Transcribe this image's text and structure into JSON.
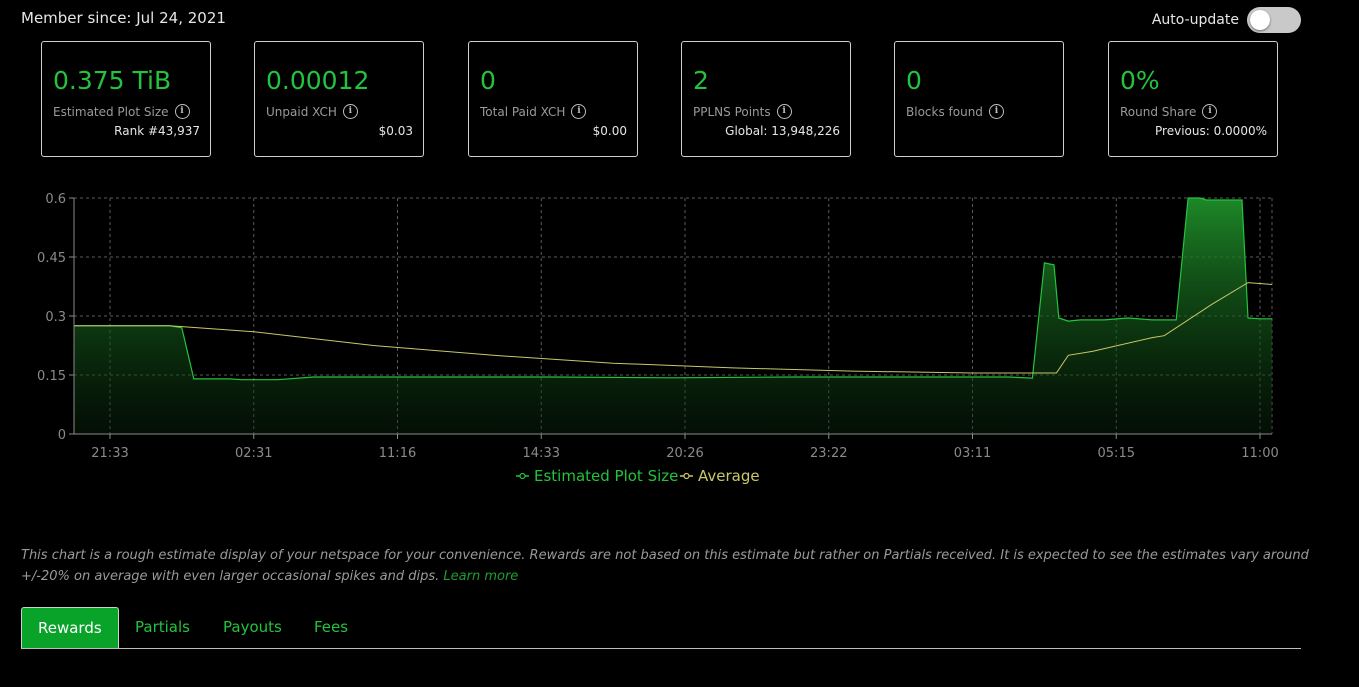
{
  "header": {
    "member_since": "Member since: Jul 24, 2021",
    "auto_update_label": "Auto-update",
    "auto_update_on": false
  },
  "cards": [
    {
      "value": "0.375 TiB",
      "label": "Estimated Plot Size",
      "sub": "Rank #43,937"
    },
    {
      "value": "0.00012",
      "label": "Unpaid XCH",
      "sub": "$0.03"
    },
    {
      "value": "0",
      "label": "Total Paid XCH",
      "sub": "$0.00"
    },
    {
      "value": "2",
      "label": "PPLNS Points",
      "sub": "Global: 13,948,226"
    },
    {
      "value": "0",
      "label": "Blocks found",
      "sub": ""
    },
    {
      "value": "0%",
      "label": "Round Share",
      "sub": "Previous: 0.0000%"
    }
  ],
  "chart_data": {
    "type": "area",
    "y_ticks": [
      "0.6",
      "0.45",
      "0.3",
      "0.15",
      "0"
    ],
    "ylim": [
      0,
      0.6
    ],
    "x_ticks": [
      "21:33",
      "02:31",
      "11:16",
      "14:33",
      "20:26",
      "23:22",
      "03:11",
      "05:15",
      "11:00"
    ],
    "grid": true,
    "legend_position": "bottom",
    "colors": {
      "plot": "#24c33d",
      "average": "#c9c86a"
    },
    "series": [
      {
        "name": "Estimated Plot Size",
        "x": [
          0,
          0.08,
          0.09,
          0.1,
          0.13,
          0.14,
          0.17,
          0.2,
          0.3,
          0.4,
          0.5,
          0.6,
          0.7,
          0.78,
          0.8,
          0.81,
          0.818,
          0.822,
          0.83,
          0.84,
          0.86,
          0.88,
          0.9,
          0.91,
          0.92,
          0.93,
          0.94,
          0.945,
          0.975,
          0.98,
          0.99,
          1.0
        ],
        "values": [
          0.275,
          0.275,
          0.27,
          0.14,
          0.14,
          0.138,
          0.138,
          0.145,
          0.145,
          0.145,
          0.143,
          0.145,
          0.145,
          0.145,
          0.142,
          0.435,
          0.43,
          0.295,
          0.287,
          0.29,
          0.29,
          0.295,
          0.29,
          0.29,
          0.29,
          0.6,
          0.6,
          0.595,
          0.595,
          0.295,
          0.293,
          0.293
        ]
      },
      {
        "name": "Average",
        "x": [
          0,
          0.08,
          0.15,
          0.25,
          0.35,
          0.45,
          0.55,
          0.65,
          0.75,
          0.82,
          0.83,
          0.85,
          0.9,
          0.91,
          0.95,
          0.98,
          1.0
        ],
        "values": [
          0.275,
          0.275,
          0.26,
          0.225,
          0.2,
          0.18,
          0.168,
          0.16,
          0.155,
          0.155,
          0.2,
          0.21,
          0.245,
          0.25,
          0.33,
          0.385,
          0.38
        ]
      }
    ]
  },
  "note": {
    "text": "This chart is a rough estimate display of your netspace for your convenience. Rewards are not based on this estimate but rather on Partials received. It is expected to see the estimates vary around +/-20% on average with even larger occasional spikes and dips.",
    "link": "Learn more"
  },
  "tabs": [
    "Rewards",
    "Partials",
    "Payouts",
    "Fees"
  ]
}
